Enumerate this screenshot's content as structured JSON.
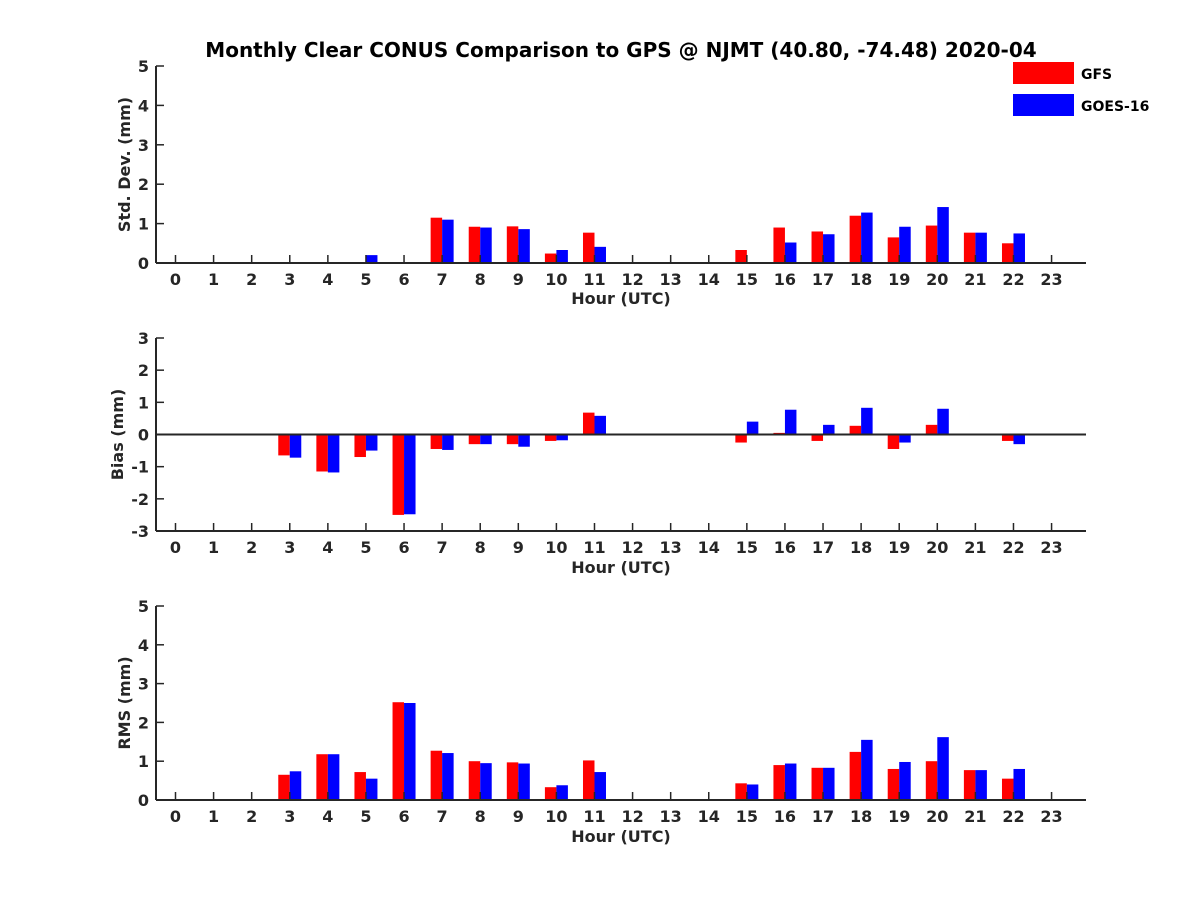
{
  "title": "Monthly Clear CONUS Comparison to GPS @ NJMT (40.80, -74.48) 2020-04",
  "legend": {
    "placement": "top-right",
    "entries": [
      {
        "name": "GFS",
        "color": "#ff0000"
      },
      {
        "name": "GOES-16",
        "color": "#0000ff"
      }
    ]
  },
  "chart_data": [
    {
      "type": "bar",
      "xlabel": "Hour (UTC)",
      "ylabel": "Std. Dev. (mm)",
      "ylim": [
        0,
        5
      ],
      "yticks": [
        0,
        1,
        2,
        3,
        4,
        5
      ],
      "categories": [
        "0",
        "1",
        "2",
        "3",
        "4",
        "5",
        "6",
        "7",
        "8",
        "9",
        "10",
        "11",
        "12",
        "13",
        "14",
        "15",
        "16",
        "17",
        "18",
        "19",
        "20",
        "21",
        "22",
        "23"
      ],
      "series": [
        {
          "name": "GFS",
          "color": "#ff0000",
          "values": [
            null,
            null,
            null,
            null,
            null,
            null,
            null,
            1.15,
            0.92,
            0.93,
            0.24,
            0.77,
            null,
            null,
            null,
            0.33,
            0.9,
            0.8,
            1.2,
            0.65,
            0.95,
            0.77,
            0.5,
            null
          ]
        },
        {
          "name": "GOES-16",
          "color": "#0000ff",
          "values": [
            null,
            null,
            null,
            null,
            null,
            0.2,
            null,
            1.1,
            0.9,
            0.86,
            0.33,
            0.41,
            null,
            null,
            null,
            null,
            0.52,
            0.73,
            1.28,
            0.92,
            1.42,
            0.77,
            0.75,
            null
          ]
        }
      ]
    },
    {
      "type": "bar",
      "xlabel": "Hour (UTC)",
      "ylabel": "Bias (mm)",
      "ylim": [
        -3,
        3
      ],
      "yticks": [
        -3,
        -2,
        -1,
        0,
        1,
        2,
        3
      ],
      "categories": [
        "0",
        "1",
        "2",
        "3",
        "4",
        "5",
        "6",
        "7",
        "8",
        "9",
        "10",
        "11",
        "12",
        "13",
        "14",
        "15",
        "16",
        "17",
        "18",
        "19",
        "20",
        "21",
        "22",
        "23"
      ],
      "series": [
        {
          "name": "GFS",
          "color": "#ff0000",
          "values": [
            null,
            null,
            null,
            -0.65,
            -1.15,
            -0.7,
            -2.5,
            -0.45,
            -0.3,
            -0.3,
            -0.2,
            0.68,
            null,
            null,
            null,
            -0.25,
            0.05,
            -0.2,
            0.27,
            -0.45,
            0.3,
            0.02,
            -0.2,
            null
          ]
        },
        {
          "name": "GOES-16",
          "color": "#0000ff",
          "values": [
            null,
            null,
            null,
            -0.72,
            -1.18,
            -0.5,
            -2.48,
            -0.48,
            -0.3,
            -0.38,
            -0.18,
            0.58,
            null,
            null,
            null,
            0.4,
            0.77,
            0.3,
            0.83,
            -0.25,
            0.8,
            0.02,
            -0.3,
            null
          ]
        }
      ]
    },
    {
      "type": "bar",
      "xlabel": "Hour (UTC)",
      "ylabel": "RMS (mm)",
      "ylim": [
        0,
        5
      ],
      "yticks": [
        0,
        1,
        2,
        3,
        4,
        5
      ],
      "categories": [
        "0",
        "1",
        "2",
        "3",
        "4",
        "5",
        "6",
        "7",
        "8",
        "9",
        "10",
        "11",
        "12",
        "13",
        "14",
        "15",
        "16",
        "17",
        "18",
        "19",
        "20",
        "21",
        "22",
        "23"
      ],
      "series": [
        {
          "name": "GFS",
          "color": "#ff0000",
          "values": [
            null,
            null,
            null,
            0.65,
            1.18,
            0.72,
            2.52,
            1.27,
            1.0,
            0.97,
            0.33,
            1.02,
            null,
            null,
            null,
            0.43,
            0.9,
            0.83,
            1.24,
            0.8,
            1.0,
            0.77,
            0.55,
            null
          ]
        },
        {
          "name": "GOES-16",
          "color": "#0000ff",
          "values": [
            null,
            null,
            null,
            0.74,
            1.18,
            0.55,
            2.5,
            1.21,
            0.95,
            0.94,
            0.38,
            0.72,
            null,
            null,
            null,
            0.4,
            0.94,
            0.83,
            1.55,
            0.98,
            1.62,
            0.77,
            0.8,
            null
          ]
        }
      ]
    }
  ]
}
